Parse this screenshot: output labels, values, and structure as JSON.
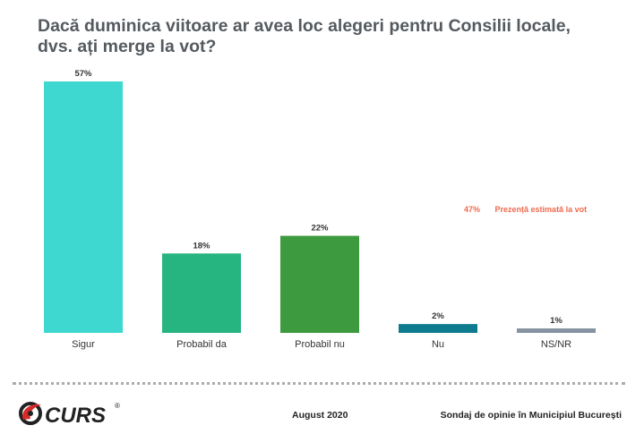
{
  "chart_data": {
    "type": "bar",
    "title_line1": "Dacă duminica viitoare ar avea loc alegeri pentru Consilii locale,",
    "title_line2": "dvs. ați merge la vot?",
    "categories": [
      "Sigur",
      "Probabil da",
      "Probabil nu",
      "Nu",
      "NS/NR"
    ],
    "values": [
      57,
      18,
      22,
      2,
      1
    ],
    "value_labels": [
      "57%",
      "18%",
      "22%",
      "2%",
      "1%"
    ],
    "colors": [
      "#3ed8d0",
      "#26b480",
      "#3e9a3e",
      "#0e7a8e",
      "#8593a1"
    ],
    "ylim": [
      0,
      60
    ],
    "grid": false,
    "annotation": {
      "value": "47%",
      "text": "Prezență estimată la vot",
      "color": "#ef6a4e"
    }
  },
  "footer": {
    "logo_text": "CURS",
    "logo_mark": "®",
    "date": "August 2020",
    "source": "Sondaj de opinie în Municipiul București"
  }
}
